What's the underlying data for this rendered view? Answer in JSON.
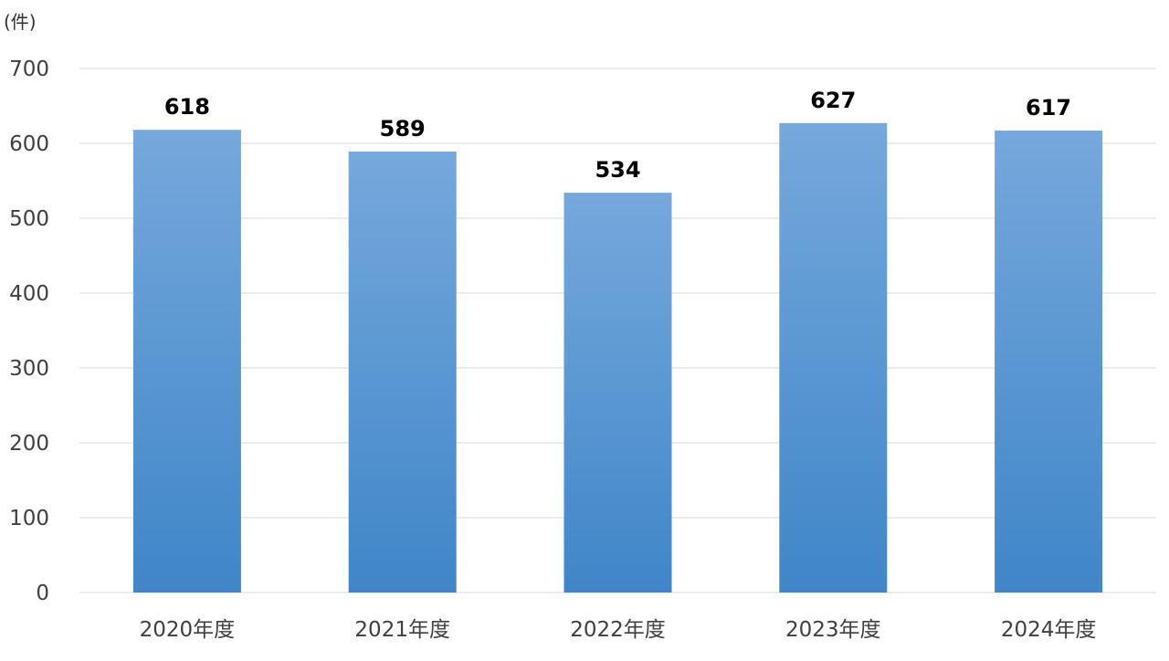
{
  "chart_data": {
    "type": "bar",
    "unit_label": "(件)",
    "categories": [
      "2020年度",
      "2021年度",
      "2022年度",
      "2023年度",
      "2024年度"
    ],
    "values": [
      618,
      589,
      534,
      627,
      617
    ],
    "data_labels": [
      "618",
      "589",
      "534",
      "627",
      "617"
    ],
    "ylim": [
      0,
      700
    ],
    "yticks": [
      0,
      100,
      200,
      300,
      400,
      500,
      600,
      700
    ],
    "grid": true,
    "legend": "none",
    "colors": {
      "bar_top": "#76a8dc",
      "bar_bottom": "#3f86c8",
      "grid": "#d9d9d9",
      "tick_text": "#404040",
      "label_text": "#000000"
    }
  }
}
